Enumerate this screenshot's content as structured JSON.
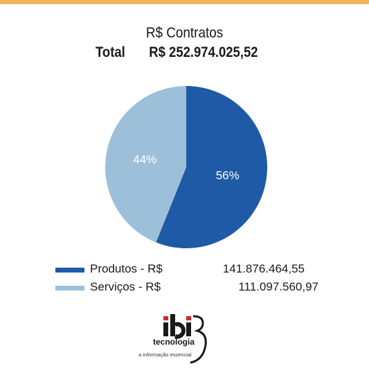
{
  "chart_data": {
    "type": "pie",
    "title": "R$ Contratos",
    "total_label": "Total",
    "total_value": "R$ 252.974.025,52",
    "slices": [
      {
        "name": "Produtos - R$",
        "value": 141876464.55,
        "value_text": "141.876.464,55",
        "percent_label": "56%",
        "color": "#1f5aa6"
      },
      {
        "name": "Serviços - R$",
        "value": 111097560.97,
        "value_text": "111.097.560,97",
        "percent_label": "44%",
        "color": "#9dc0da"
      }
    ]
  },
  "colors": {
    "accent_bar": "#f6b15a",
    "percent_text": "#ffffff",
    "logo_red": "#d7262b"
  },
  "logo": {
    "brand": "ibi",
    "subtitle": "tecnologia",
    "tagline": "a informação essencial"
  }
}
